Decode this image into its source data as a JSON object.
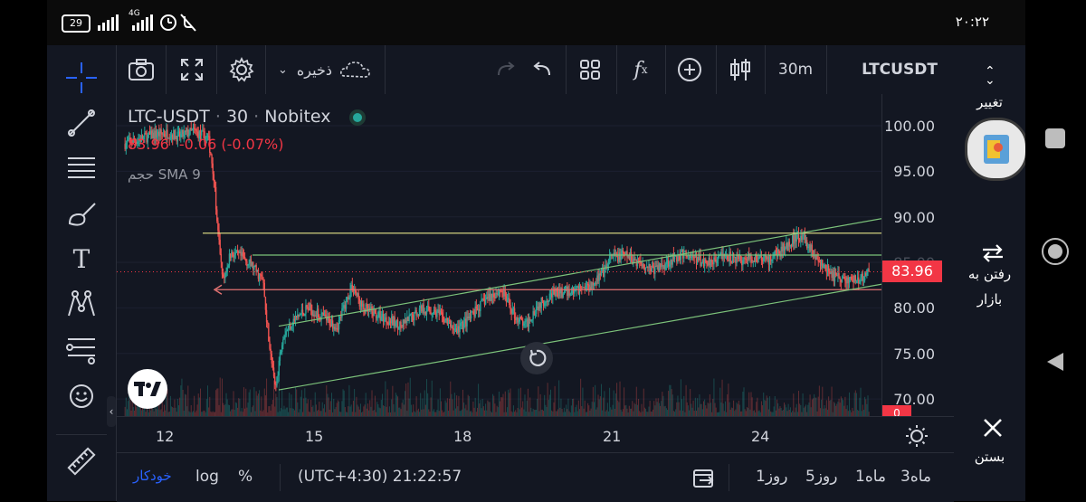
{
  "status": {
    "battery": "29",
    "network": "4G",
    "time": "۲۰:۲۲"
  },
  "toolbar": {
    "save_label": "ذخیره",
    "interval": "30m",
    "symbol": "LTCUSDT"
  },
  "legend": {
    "title": "LTC-USDT",
    "interval": "30",
    "exchange": "Nobitex",
    "price": "83.96",
    "change": "-0.06 (-0.07%)",
    "indicator": "حجم SMA 9"
  },
  "price_axis": {
    "ticks": [
      "100.00",
      "95.00",
      "90.00",
      "85.00",
      "80.00",
      "75.00",
      "70.00"
    ],
    "current_price": "83.96",
    "volume_label": "0"
  },
  "time_axis": {
    "ticks": [
      "12",
      "15",
      "18",
      "21",
      "24"
    ]
  },
  "bottom": {
    "auto": "خودکار",
    "log": "log",
    "percent": "%",
    "clock": "(UTC+4:30) 21:22:57",
    "ranges": [
      "3ماه",
      "1ماه",
      "5روز",
      "1روز"
    ]
  },
  "right_panel": {
    "change_label": "تغییر",
    "market_label_1": "رفتن به",
    "market_label_2": "بازار",
    "close_label": "بستن"
  },
  "colors": {
    "background": "#131722",
    "up": "#26a69a",
    "down": "#ef5350",
    "price_badge": "#f23645",
    "accent": "#2962ff",
    "trendline_green": "#7cc27a",
    "trendline_yellow": "#e8e58a"
  },
  "chart_data": {
    "type": "candlestick",
    "title": "LTC-USDT · 30 · Nobitex",
    "x_ticks": [
      "12",
      "15",
      "18",
      "21",
      "24"
    ],
    "ylim": [
      69,
      104
    ],
    "current_price": 83.96,
    "horizontal_levels": [
      88.2,
      85.8,
      82.0
    ],
    "price_path": [
      [
        11.2,
        98.0
      ],
      [
        11.5,
        98.5
      ],
      [
        11.8,
        99.0
      ],
      [
        12.1,
        99.2
      ],
      [
        12.3,
        98.8
      ],
      [
        12.6,
        99.4
      ],
      [
        12.9,
        98.6
      ],
      [
        13.0,
        95.0
      ],
      [
        13.1,
        88.0
      ],
      [
        13.2,
        83.0
      ],
      [
        13.35,
        86.0
      ],
      [
        13.6,
        85.5
      ],
      [
        13.8,
        84.5
      ],
      [
        14.0,
        83.0
      ],
      [
        14.15,
        75.0
      ],
      [
        14.25,
        71.0
      ],
      [
        14.4,
        77.0
      ],
      [
        14.6,
        78.5
      ],
      [
        14.9,
        80.0
      ],
      [
        15.2,
        79.0
      ],
      [
        15.5,
        78.0
      ],
      [
        15.8,
        82.5
      ],
      [
        16.0,
        80.0
      ],
      [
        16.4,
        79.0
      ],
      [
        16.8,
        78.0
      ],
      [
        17.2,
        80.0
      ],
      [
        17.5,
        79.5
      ],
      [
        17.9,
        77.5
      ],
      [
        18.2,
        79.0
      ],
      [
        18.5,
        81.0
      ],
      [
        18.8,
        82.0
      ],
      [
        19.1,
        79.0
      ],
      [
        19.3,
        78.0
      ],
      [
        19.5,
        80.0
      ],
      [
        19.8,
        81.5
      ],
      [
        20.2,
        81.8
      ],
      [
        20.6,
        82.5
      ],
      [
        20.9,
        84.0
      ],
      [
        21.0,
        85.5
      ],
      [
        21.3,
        85.8
      ],
      [
        21.6,
        85.0
      ],
      [
        21.9,
        84.2
      ],
      [
        22.2,
        85.2
      ],
      [
        22.5,
        86.0
      ],
      [
        22.9,
        85.0
      ],
      [
        23.3,
        85.8
      ],
      [
        23.6,
        85.2
      ],
      [
        23.9,
        85.5
      ],
      [
        24.2,
        85.3
      ],
      [
        24.5,
        86.5
      ],
      [
        24.8,
        88.0
      ],
      [
        25.0,
        87.0
      ],
      [
        25.2,
        85.0
      ],
      [
        25.5,
        83.5
      ],
      [
        25.8,
        83.0
      ],
      [
        26.1,
        83.2
      ],
      [
        26.2,
        83.96
      ]
    ]
  }
}
